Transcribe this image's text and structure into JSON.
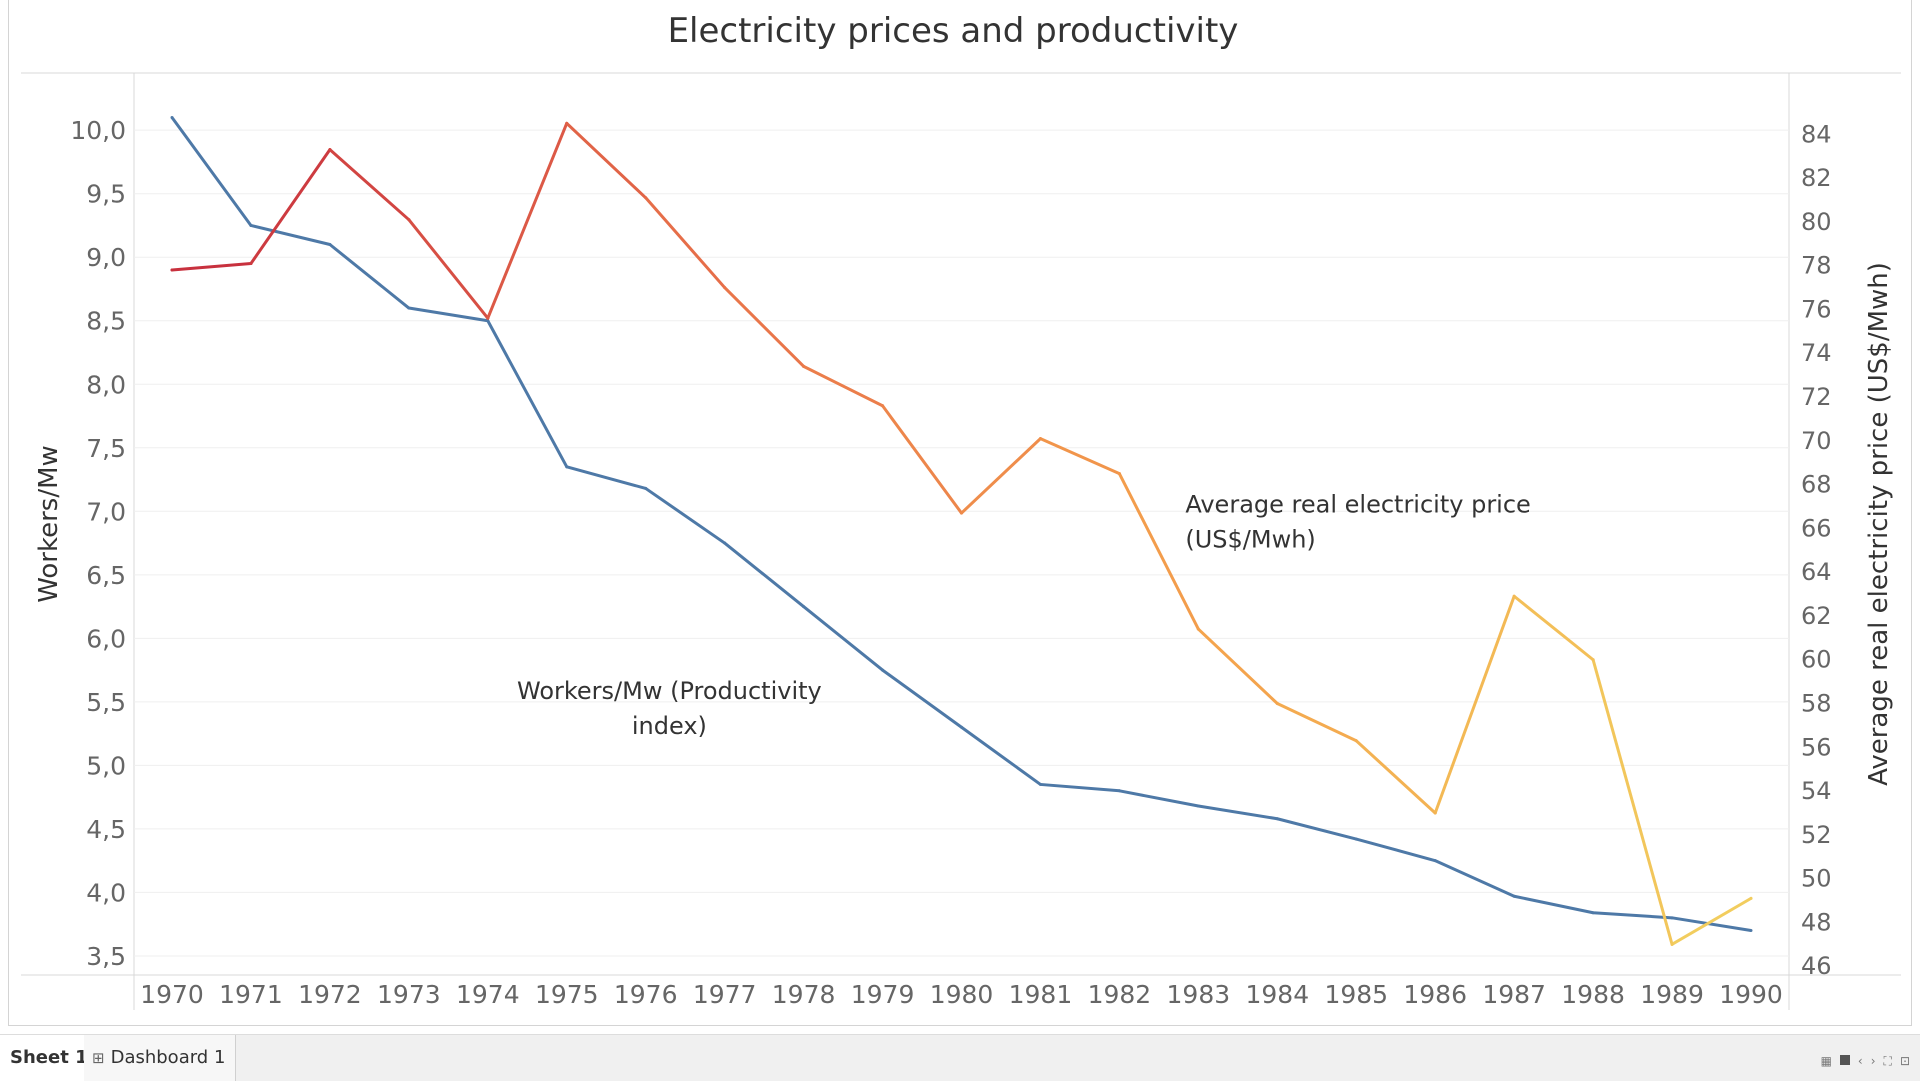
{
  "chart_data": {
    "type": "line",
    "title": "Electricity prices and productivity",
    "x": [
      "1970",
      "1971",
      "1972",
      "1973",
      "1974",
      "1975",
      "1976",
      "1977",
      "1978",
      "1979",
      "1980",
      "1981",
      "1982",
      "1983",
      "1984",
      "1985",
      "1986",
      "1987",
      "1988",
      "1989",
      "1990"
    ],
    "y_left": {
      "label": "Workers/Mw",
      "range": [
        3.35,
        10.45
      ],
      "ticks": [
        "3,5",
        "4,0",
        "4,5",
        "5,0",
        "5,5",
        "6,0",
        "6,5",
        "7,0",
        "7,5",
        "8,0",
        "8,5",
        "9,0",
        "9,5",
        "10,0"
      ],
      "tick_values": [
        3.5,
        4.0,
        4.5,
        5.0,
        5.5,
        6.0,
        6.5,
        7.0,
        7.5,
        8.0,
        8.5,
        9.0,
        9.5,
        10.0
      ]
    },
    "y_right": {
      "label": "Average real electricity price (US$/Mwh)",
      "range": [
        45.6,
        86.8
      ],
      "ticks": [
        "46",
        "48",
        "50",
        "52",
        "54",
        "56",
        "58",
        "60",
        "62",
        "64",
        "66",
        "68",
        "70",
        "72",
        "74",
        "76",
        "78",
        "80",
        "82",
        "84"
      ],
      "tick_values": [
        46,
        48,
        50,
        52,
        54,
        56,
        58,
        60,
        62,
        64,
        66,
        68,
        70,
        72,
        74,
        76,
        78,
        80,
        82,
        84
      ]
    },
    "series": [
      {
        "name": "Workers/Mw (Productivity index)",
        "axis": "left",
        "color": "#4e79a7",
        "values": [
          10.1,
          9.25,
          9.1,
          8.6,
          8.5,
          7.35,
          7.18,
          6.75,
          6.25,
          5.75,
          5.3,
          4.85,
          4.8,
          4.68,
          4.58,
          4.42,
          4.25,
          3.97,
          3.84,
          3.8,
          3.7
        ]
      },
      {
        "name": "Average real electricity price (US$/Mwh)",
        "axis": "right",
        "color_scale": [
          "#c8313e",
          "#e8714a",
          "#f4a24c",
          "#f2cd5e"
        ],
        "values": [
          77.8,
          78.1,
          83.3,
          80.1,
          75.6,
          84.5,
          81.1,
          77.0,
          73.4,
          71.6,
          66.7,
          70.1,
          68.5,
          61.4,
          58.0,
          56.3,
          53.0,
          62.9,
          60.0,
          47.0,
          49.1
        ]
      }
    ],
    "annotations": [
      {
        "text_lines": [
          "Average real electricity price",
          "(US$/Mwh)"
        ],
        "anchor": {
          "x": "1983",
          "y_right": 67.5
        }
      },
      {
        "text_lines": [
          "Workers/Mw (Productivity",
          "index)"
        ],
        "anchor": {
          "x": "1976.3",
          "y_left": 5.5
        }
      }
    ],
    "grid": true,
    "legend": "none"
  },
  "tabs": [
    {
      "label": "Sheet 1",
      "active": true
    },
    {
      "label": "Dashboard 1",
      "icon": "dashboard-grid-icon",
      "active": false
    }
  ],
  "nav_controls": [
    "grid-view-icon",
    "presentation-icon",
    "prev-icon",
    "next-icon",
    "fullscreen-icon",
    "present-mode-icon"
  ]
}
